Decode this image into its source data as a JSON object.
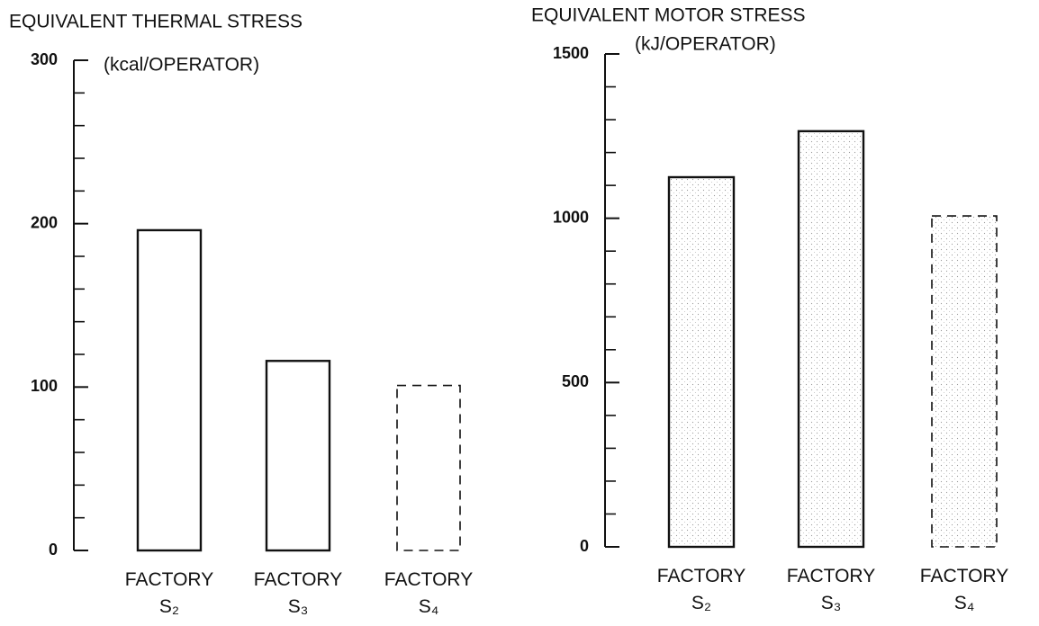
{
  "chart_data": [
    {
      "type": "bar",
      "title": "EQUIVALENT THERMAL STRESS",
      "y_label": "(kcal/OPERATOR)",
      "categories": [
        "FACTORY\nS₂",
        "FACTORY\nS₃",
        "FACTORY\nS₄"
      ],
      "values": [
        196,
        116,
        101
      ],
      "line_styles": [
        "solid",
        "solid",
        "dashed"
      ],
      "color": "#ffffff",
      "ylim": [
        0,
        300
      ],
      "yticks": [
        0,
        100,
        200,
        300
      ],
      "yminorticks": [
        20,
        40,
        60,
        80,
        120,
        140,
        160,
        180,
        220,
        240,
        260,
        280
      ]
    },
    {
      "type": "bar",
      "title": "EQUIVALENT MOTOR STRESS",
      "y_label": "(kJ/OPERATOR)",
      "categories": [
        "FACTORY\nS₂",
        "FACTORY\nS₃",
        "FACTORY\nS₄"
      ],
      "values": [
        1125,
        1265,
        1007
      ],
      "line_styles": [
        "solid",
        "solid",
        "dashed"
      ],
      "color": "#ffffff",
      "ylim": [
        0,
        1500
      ],
      "yticks": [
        0,
        500,
        1000,
        1500
      ],
      "yminorticks": [
        100,
        200,
        300,
        400,
        600,
        700,
        800,
        900,
        1100,
        1200,
        1300,
        1400
      ]
    }
  ]
}
